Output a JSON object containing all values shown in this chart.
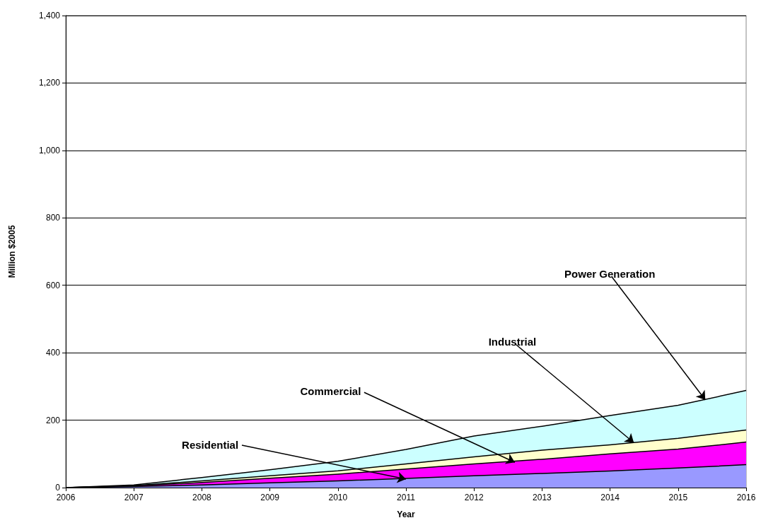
{
  "chart_data": {
    "type": "area",
    "stacked": true,
    "xlabel": "Year",
    "ylabel": "Million $2005",
    "x": [
      2006,
      2007,
      2008,
      2009,
      2010,
      2011,
      2012,
      2013,
      2014,
      2015,
      2016
    ],
    "series": [
      {
        "color": "#9999ff",
        "values": [
          0,
          3,
          8,
          14,
          20,
          27,
          35,
          42,
          49,
          58,
          68
        ]
      },
      {
        "color": "#ff00ff",
        "values": [
          0,
          2,
          7,
          14,
          20,
          28,
          35,
          42,
          51,
          56,
          67
        ]
      },
      {
        "color": "#ffffcc",
        "values": [
          0,
          1,
          5,
          7,
          10,
          15,
          21,
          27,
          27,
          32,
          36
        ]
      },
      {
        "color": "#ccffff",
        "values": [
          0,
          2,
          10,
          18,
          28,
          43,
          62,
          71,
          87,
          98,
          117
        ]
      }
    ],
    "xlim": [
      2006,
      2016
    ],
    "xticks": [
      2006,
      2007,
      2008,
      2009,
      2010,
      2011,
      2012,
      2013,
      2014,
      2015,
      2016
    ],
    "ylim": [
      0,
      1400
    ],
    "yticks": [
      0,
      200,
      400,
      600,
      800,
      {
        "value": 1000,
        "label": "1,000"
      },
      {
        "value": 1200,
        "label": "1,200"
      },
      {
        "value": 1400,
        "label": "1,400"
      }
    ],
    "grid": "y",
    "marker": "none",
    "line_style": "solid",
    "annotations": [
      {
        "text": "Residential",
        "x": 2011,
        "y": 25
      },
      {
        "text": "Commercial",
        "x": 2012.6,
        "y": 75
      },
      {
        "text": "Industrial",
        "x": 2014.35,
        "y": 133
      },
      {
        "text": "Power Generation",
        "x": 2015.4,
        "y": 260
      }
    ]
  }
}
